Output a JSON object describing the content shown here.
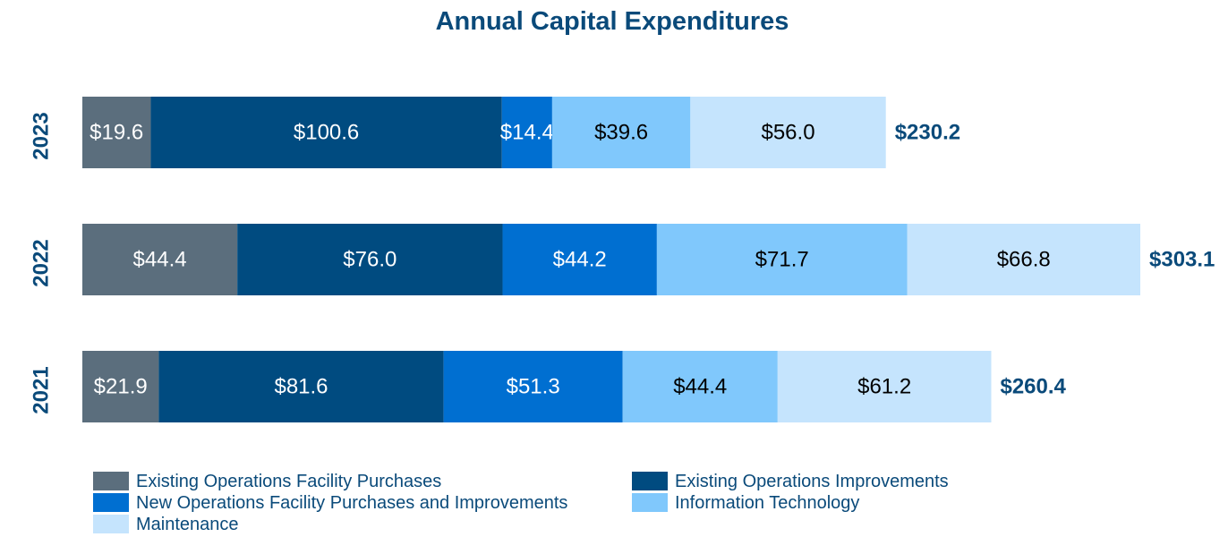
{
  "chart_data": {
    "type": "bar",
    "orientation": "horizontal",
    "stacked": true,
    "title": "Annual Capital Expenditures",
    "categories": [
      "2023",
      "2022",
      "2021"
    ],
    "series": [
      {
        "name": "Existing Operations Facility Purchases",
        "color": "#5b6e7d",
        "values": [
          19.6,
          44.4,
          21.9
        ],
        "labels": [
          "$19.6",
          "$44.4",
          "$21.9"
        ],
        "label_color": "#ffffff"
      },
      {
        "name": "Existing Operations Improvements",
        "color": "#004b80",
        "values": [
          100.6,
          76.0,
          81.6
        ],
        "labels": [
          "$100.6",
          "$76.0",
          "$81.6"
        ],
        "label_color": "#ffffff"
      },
      {
        "name": "New Operations Facility Purchases and Improvements",
        "color": "#006fd1",
        "values": [
          14.4,
          44.2,
          51.3
        ],
        "labels": [
          "$14.4",
          "$44.2",
          "$51.3"
        ],
        "label_color": "#ffffff"
      },
      {
        "name": "Information Technology",
        "color": "#80c8fc",
        "values": [
          39.6,
          71.7,
          44.4
        ],
        "labels": [
          "$39.6",
          "$71.7",
          "$44.4"
        ],
        "label_color": "#000000"
      },
      {
        "name": "Maintenance",
        "color": "#c5e4fd",
        "values": [
          56.0,
          66.8,
          61.2
        ],
        "labels": [
          "$56.0",
          "$66.8",
          "$61.2"
        ],
        "label_color": "#000000"
      }
    ],
    "totals": [
      230.2,
      303.1,
      260.4
    ],
    "total_labels": [
      "$230.2",
      "$303.1",
      "$260.4"
    ],
    "xlim": [
      0,
      303.1
    ],
    "grid": false,
    "legend_position": "bottom"
  },
  "colors": {
    "title": "#0a4a7a",
    "year_label": "#0a4a7a",
    "total_label": "#0a4a7a",
    "legend_text": "#0a4a7a"
  }
}
